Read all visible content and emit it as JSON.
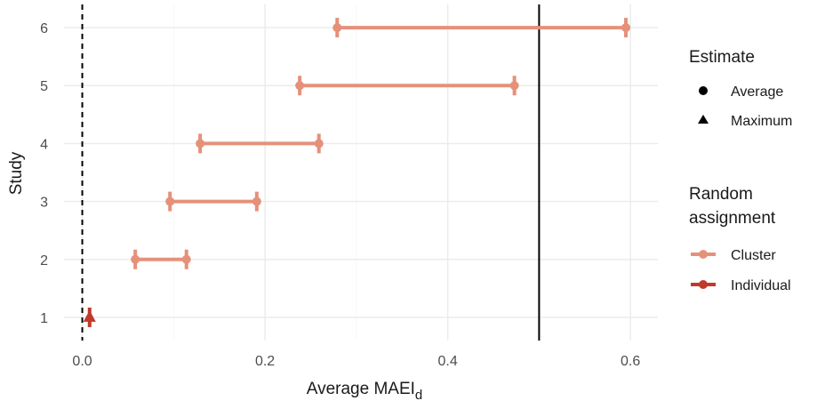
{
  "chart_data": {
    "type": "interval",
    "xlabel": "Average MAEI",
    "xlabel_sub": "d",
    "ylabel": "Study",
    "xlim": [
      -0.02,
      0.63
    ],
    "ylim": [
      0.6,
      6.4
    ],
    "x_ticks": [
      0.0,
      0.2,
      0.4,
      0.6
    ],
    "x_tick_labels": [
      "0.0",
      "0.2",
      "0.4",
      "0.6"
    ],
    "y_ticks": [
      1,
      2,
      3,
      4,
      5,
      6
    ],
    "y_tick_labels": [
      "1",
      "2",
      "3",
      "4",
      "5",
      "6"
    ],
    "grid": true,
    "reference_lines": [
      {
        "x": 0.0,
        "style": "dashed"
      },
      {
        "x": 0.5,
        "style": "solid"
      }
    ],
    "intervals": [
      {
        "study": 1,
        "low": 0.008,
        "high": 0.008,
        "estimate": "Maximum",
        "assignment": "Individual"
      },
      {
        "study": 2,
        "low": 0.058,
        "high": 0.114,
        "estimate": "Average",
        "assignment": "Cluster"
      },
      {
        "study": 3,
        "low": 0.096,
        "high": 0.191,
        "estimate": "Average",
        "assignment": "Cluster"
      },
      {
        "study": 4,
        "low": 0.129,
        "high": 0.259,
        "estimate": "Average",
        "assignment": "Cluster"
      },
      {
        "study": 5,
        "low": 0.238,
        "high": 0.473,
        "estimate": "Average",
        "assignment": "Cluster"
      },
      {
        "study": 6,
        "low": 0.279,
        "high": 0.595,
        "estimate": "Average",
        "assignment": "Cluster"
      }
    ],
    "colors": {
      "Cluster": "#e5917a",
      "Individual": "#c0392b"
    },
    "legend": {
      "placement": "right",
      "estimate": {
        "title": "Estimate",
        "items": [
          "Average",
          "Maximum"
        ]
      },
      "assignment": {
        "title_line1": "Random",
        "title_line2": "assignment",
        "items": [
          "Cluster",
          "Individual"
        ]
      }
    }
  }
}
